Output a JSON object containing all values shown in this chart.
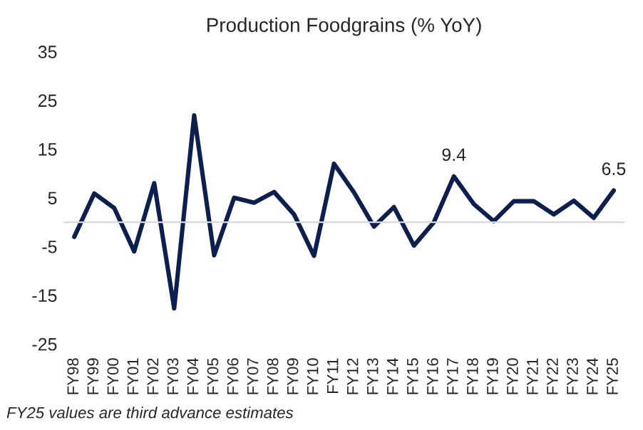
{
  "chart_data": {
    "type": "line",
    "title": "Production Foodgrains (% YoY)",
    "categories": [
      "FY98",
      "FY99",
      "FY00",
      "FY01",
      "FY02",
      "FY03",
      "FY04",
      "FY05",
      "FY06",
      "FY07",
      "FY08",
      "FY09",
      "FY10",
      "FY11",
      "FY12",
      "FY13",
      "FY14",
      "FY15",
      "FY16",
      "FY17",
      "FY18",
      "FY19",
      "FY20",
      "FY21",
      "FY22",
      "FY23",
      "FY24",
      "FY25"
    ],
    "series": [
      {
        "color": "#0d1f4f",
        "values": [
          -3,
          5.9,
          2.9,
          -6,
          8,
          -17.7,
          21.9,
          -6.8,
          5,
          4,
          6.2,
          1.6,
          -6.9,
          12,
          6.1,
          -0.9,
          3.1,
          -4.8,
          0,
          9.4,
          3.7,
          0.2,
          4.3,
          4.3,
          1.6,
          4.4,
          0.9,
          6.5
        ],
        "value_labels": [
          null,
          null,
          null,
          null,
          null,
          null,
          null,
          null,
          null,
          null,
          null,
          null,
          null,
          null,
          null,
          null,
          null,
          null,
          null,
          "9.4",
          null,
          null,
          null,
          null,
          null,
          null,
          null,
          "6.5"
        ]
      }
    ],
    "ylim": [
      -25,
      35
    ],
    "yticks": [
      -25,
      -15,
      -5,
      5,
      15,
      25,
      35
    ],
    "annotations": [
      "FY25 values are third advance estimates"
    ]
  }
}
